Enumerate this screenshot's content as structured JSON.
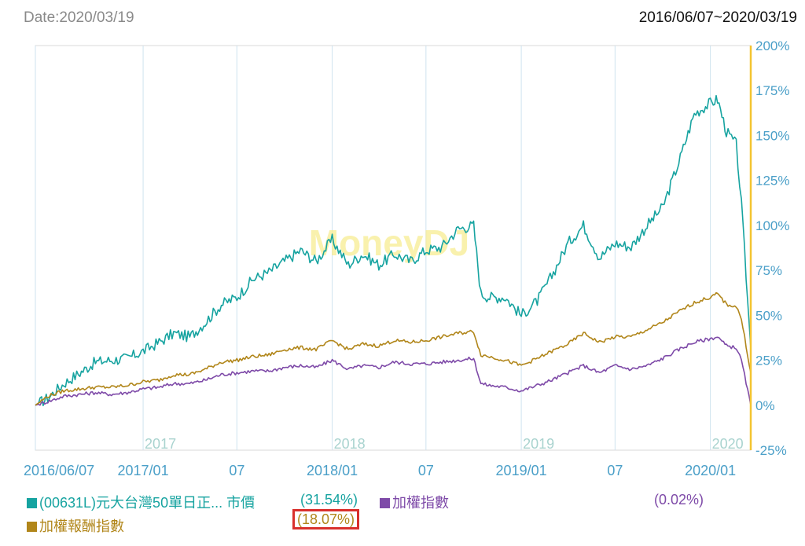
{
  "header": {
    "date_label": "Date:2020/03/19",
    "range_label": "2016/06/07~2020/03/19"
  },
  "watermark": "MoneyDJ",
  "colors": {
    "teal": "#16a3a0",
    "purple": "#7e4aa8",
    "gold": "#b1861a",
    "grid": "#cfe3ef",
    "axis_text": "#4a9fc8",
    "year_label": "#a9d3cf",
    "cursor": "#f4c430",
    "highlight": "#d9302c"
  },
  "chart_data": {
    "type": "line",
    "x_start": "2016-06-07",
    "x_end": "2020-03-19",
    "xlim": [
      "2016-06-07",
      "2020-03-19"
    ],
    "ylim": [
      -25,
      200
    ],
    "y_ticks": [
      "200%",
      "175%",
      "150%",
      "125%",
      "100%",
      "75%",
      "50%",
      "25%",
      "0%",
      "-25%"
    ],
    "x_tick_labels": [
      {
        "label": "2016/06/07",
        "date": "2016-06-07"
      },
      {
        "label": "2017/01",
        "date": "2017-01-01"
      },
      {
        "label": "07",
        "date": "2017-07-01"
      },
      {
        "label": "2018/01",
        "date": "2018-01-01"
      },
      {
        "label": "07",
        "date": "2018-07-01"
      },
      {
        "label": "2019/01",
        "date": "2019-01-01"
      },
      {
        "label": "07",
        "date": "2019-07-01"
      },
      {
        "label": "2020/01",
        "date": "2020-01-01"
      }
    ],
    "year_labels": [
      {
        "label": "2017",
        "date": "2017-01-01"
      },
      {
        "label": "2018",
        "date": "2018-01-01"
      },
      {
        "label": "2019",
        "date": "2019-01-01"
      },
      {
        "label": "2020",
        "date": "2020-01-01"
      }
    ],
    "series": [
      {
        "name": "(00631L)元大台灣50單日正... 市價",
        "change": "(31.54%)",
        "color": "#16a3a0",
        "points": [
          [
            "2016-06-07",
            0
          ],
          [
            "2016-07-01",
            4
          ],
          [
            "2016-08-01",
            12
          ],
          [
            "2016-09-01",
            18
          ],
          [
            "2016-10-01",
            24
          ],
          [
            "2016-11-01",
            25
          ],
          [
            "2016-12-01",
            26
          ],
          [
            "2017-01-01",
            30
          ],
          [
            "2017-02-01",
            35
          ],
          [
            "2017-03-01",
            40
          ],
          [
            "2017-04-01",
            38
          ],
          [
            "2017-05-01",
            46
          ],
          [
            "2017-06-01",
            56
          ],
          [
            "2017-07-01",
            60
          ],
          [
            "2017-08-01",
            70
          ],
          [
            "2017-09-01",
            74
          ],
          [
            "2017-10-01",
            80
          ],
          [
            "2017-11-01",
            86
          ],
          [
            "2017-12-01",
            80
          ],
          [
            "2018-01-01",
            92
          ],
          [
            "2018-02-01",
            78
          ],
          [
            "2018-03-01",
            84
          ],
          [
            "2018-04-01",
            78
          ],
          [
            "2018-05-01",
            84
          ],
          [
            "2018-06-01",
            80
          ],
          [
            "2018-07-01",
            86
          ],
          [
            "2018-08-01",
            88
          ],
          [
            "2018-09-01",
            98
          ],
          [
            "2018-10-01",
            100
          ],
          [
            "2018-10-15",
            62
          ],
          [
            "2018-11-01",
            60
          ],
          [
            "2018-12-01",
            60
          ],
          [
            "2019-01-01",
            50
          ],
          [
            "2019-02-01",
            58
          ],
          [
            "2019-03-01",
            72
          ],
          [
            "2019-04-01",
            90
          ],
          [
            "2019-05-01",
            100
          ],
          [
            "2019-06-01",
            82
          ],
          [
            "2019-07-01",
            90
          ],
          [
            "2019-08-01",
            88
          ],
          [
            "2019-09-01",
            100
          ],
          [
            "2019-10-01",
            110
          ],
          [
            "2019-11-01",
            135
          ],
          [
            "2019-12-01",
            162
          ],
          [
            "2020-01-01",
            168
          ],
          [
            "2020-01-15",
            170
          ],
          [
            "2020-02-01",
            152
          ],
          [
            "2020-02-20",
            145
          ],
          [
            "2020-03-01",
            112
          ],
          [
            "2020-03-19",
            31.54
          ]
        ]
      },
      {
        "name": "加權指數",
        "change": "(0.02%)",
        "color": "#7e4aa8",
        "points": [
          [
            "2016-06-07",
            0
          ],
          [
            "2016-07-01",
            2
          ],
          [
            "2016-08-01",
            5
          ],
          [
            "2016-09-01",
            6
          ],
          [
            "2016-10-01",
            7
          ],
          [
            "2016-11-01",
            6
          ],
          [
            "2016-12-01",
            7
          ],
          [
            "2017-01-01",
            9
          ],
          [
            "2017-02-01",
            10
          ],
          [
            "2017-03-01",
            12
          ],
          [
            "2017-04-01",
            12
          ],
          [
            "2017-05-01",
            14
          ],
          [
            "2017-06-01",
            17
          ],
          [
            "2017-07-01",
            18
          ],
          [
            "2017-08-01",
            19
          ],
          [
            "2017-09-01",
            19
          ],
          [
            "2017-10-01",
            21
          ],
          [
            "2017-11-01",
            22
          ],
          [
            "2017-12-01",
            21
          ],
          [
            "2018-01-01",
            25
          ],
          [
            "2018-02-01",
            20
          ],
          [
            "2018-03-01",
            22
          ],
          [
            "2018-04-01",
            21
          ],
          [
            "2018-05-01",
            24
          ],
          [
            "2018-06-01",
            23
          ],
          [
            "2018-07-01",
            23
          ],
          [
            "2018-08-01",
            24
          ],
          [
            "2018-09-01",
            25
          ],
          [
            "2018-10-01",
            26
          ],
          [
            "2018-10-15",
            12
          ],
          [
            "2018-11-01",
            11
          ],
          [
            "2018-12-01",
            10
          ],
          [
            "2019-01-01",
            8
          ],
          [
            "2019-02-01",
            11
          ],
          [
            "2019-03-01",
            14
          ],
          [
            "2019-04-01",
            18
          ],
          [
            "2019-05-01",
            22
          ],
          [
            "2019-06-01",
            18
          ],
          [
            "2019-07-01",
            22
          ],
          [
            "2019-08-01",
            20
          ],
          [
            "2019-09-01",
            22
          ],
          [
            "2019-10-01",
            26
          ],
          [
            "2019-11-01",
            31
          ],
          [
            "2019-12-01",
            35
          ],
          [
            "2020-01-01",
            37
          ],
          [
            "2020-01-15",
            38
          ],
          [
            "2020-02-01",
            33
          ],
          [
            "2020-02-20",
            32
          ],
          [
            "2020-03-01",
            25
          ],
          [
            "2020-03-19",
            0.02
          ]
        ]
      },
      {
        "name": "加權報酬指數",
        "change": "(18.07%)",
        "color": "#b1861a",
        "points": [
          [
            "2016-06-07",
            0
          ],
          [
            "2016-07-01",
            5
          ],
          [
            "2016-08-01",
            8
          ],
          [
            "2016-09-01",
            9
          ],
          [
            "2016-10-01",
            10
          ],
          [
            "2016-11-01",
            10
          ],
          [
            "2016-12-01",
            11
          ],
          [
            "2017-01-01",
            13
          ],
          [
            "2017-02-01",
            14
          ],
          [
            "2017-03-01",
            17
          ],
          [
            "2017-04-01",
            17
          ],
          [
            "2017-05-01",
            20
          ],
          [
            "2017-06-01",
            24
          ],
          [
            "2017-07-01",
            25
          ],
          [
            "2017-08-01",
            27
          ],
          [
            "2017-09-01",
            28
          ],
          [
            "2017-10-01",
            31
          ],
          [
            "2017-11-01",
            32
          ],
          [
            "2017-12-01",
            31
          ],
          [
            "2018-01-01",
            36
          ],
          [
            "2018-02-01",
            31
          ],
          [
            "2018-03-01",
            34
          ],
          [
            "2018-04-01",
            33
          ],
          [
            "2018-05-01",
            36
          ],
          [
            "2018-06-01",
            35
          ],
          [
            "2018-07-01",
            36
          ],
          [
            "2018-08-01",
            38
          ],
          [
            "2018-09-01",
            40
          ],
          [
            "2018-10-01",
            41
          ],
          [
            "2018-10-15",
            28
          ],
          [
            "2018-11-01",
            27
          ],
          [
            "2018-12-01",
            25
          ],
          [
            "2019-01-01",
            22
          ],
          [
            "2019-02-01",
            26
          ],
          [
            "2019-03-01",
            30
          ],
          [
            "2019-04-01",
            34
          ],
          [
            "2019-05-01",
            40
          ],
          [
            "2019-06-01",
            35
          ],
          [
            "2019-07-01",
            38
          ],
          [
            "2019-08-01",
            38
          ],
          [
            "2019-09-01",
            42
          ],
          [
            "2019-10-01",
            46
          ],
          [
            "2019-11-01",
            52
          ],
          [
            "2019-12-01",
            57
          ],
          [
            "2020-01-01",
            60
          ],
          [
            "2020-01-15",
            62
          ],
          [
            "2020-02-01",
            56
          ],
          [
            "2020-02-20",
            55
          ],
          [
            "2020-03-01",
            48
          ],
          [
            "2020-03-19",
            18.07
          ]
        ]
      }
    ]
  }
}
